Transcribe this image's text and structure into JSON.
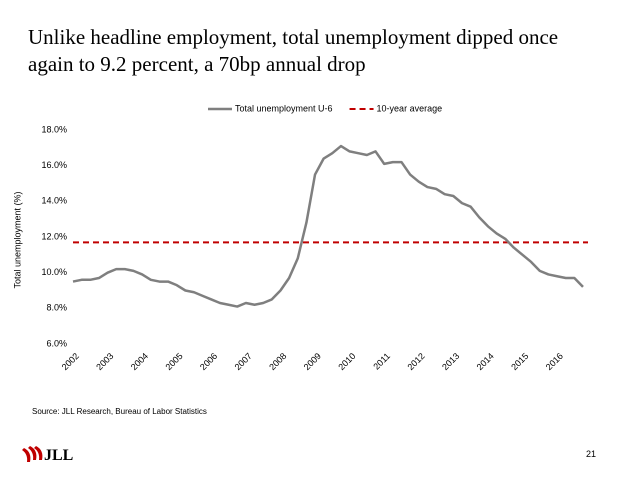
{
  "title": "Unlike headline employment, total unemployment dipped once again to 9.2 percent, a 70bp annual drop",
  "source": "Source: JLL Research, Bureau of Labor Statistics",
  "page_number": "21",
  "logo": "JLL",
  "chart_data": {
    "type": "line",
    "y_label": "Total unemployment (%)",
    "categories": [
      "2002",
      null,
      null,
      null,
      "2003",
      null,
      null,
      null,
      "2004",
      null,
      null,
      null,
      "2005",
      null,
      null,
      null,
      "2006",
      null,
      null,
      null,
      "2007",
      null,
      null,
      null,
      "2008",
      null,
      null,
      null,
      "2009",
      null,
      null,
      null,
      "2010",
      null,
      null,
      null,
      "2011",
      null,
      null,
      null,
      "2012",
      null,
      null,
      null,
      "2013",
      null,
      null,
      null,
      "2014",
      null,
      null,
      null,
      "2015",
      null,
      null,
      null,
      "2016",
      null,
      null,
      null
    ],
    "series": [
      {
        "name": "Total unemployment U-6",
        "color": "#7f7f7f",
        "values": [
          9.5,
          9.6,
          9.6,
          9.7,
          10.0,
          10.2,
          10.2,
          10.1,
          9.9,
          9.6,
          9.5,
          9.5,
          9.3,
          9.0,
          8.9,
          8.7,
          8.5,
          8.3,
          8.2,
          8.1,
          8.3,
          8.2,
          8.3,
          8.5,
          9.0,
          9.7,
          10.8,
          12.8,
          15.5,
          16.4,
          16.7,
          17.1,
          16.8,
          16.7,
          16.6,
          16.8,
          16.1,
          16.2,
          16.2,
          15.5,
          15.1,
          14.8,
          14.7,
          14.4,
          14.3,
          13.9,
          13.7,
          13.1,
          12.6,
          12.2,
          11.9,
          11.4,
          11.0,
          10.6,
          10.1,
          9.9,
          9.8,
          9.7,
          9.7,
          9.2
        ]
      }
    ],
    "reference_line": {
      "name": "10-year average",
      "value": 11.7,
      "color": "#c00000",
      "style": "dashed"
    },
    "ylim": [
      6,
      18
    ],
    "yticks": [
      {
        "value": 6,
        "label": "6.0%"
      },
      {
        "value": 8,
        "label": "8.0%"
      },
      {
        "value": 10,
        "label": "10.0%"
      },
      {
        "value": 12,
        "label": "12.0%"
      },
      {
        "value": 14,
        "label": "14.0%"
      },
      {
        "value": 16,
        "label": "16.0%"
      },
      {
        "value": 18,
        "label": "18.0%"
      }
    ],
    "grid": false,
    "legend": "top"
  }
}
